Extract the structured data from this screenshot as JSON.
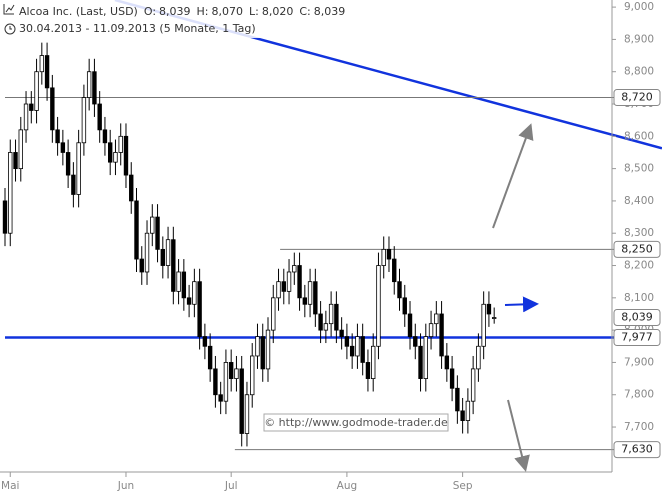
{
  "chart_data": {
    "type": "candlestick",
    "title": "Alcoa Inc. (Last, USD)",
    "ohlc_header": [
      {
        "name": "O:",
        "value": 8.039,
        "label": "8,039"
      },
      {
        "name": "H:",
        "value": 8.07,
        "label": "8,070"
      },
      {
        "name": "L:",
        "value": 8.02,
        "label": "8,020"
      },
      {
        "name": "C:",
        "value": 8.039,
        "label": "8,039"
      }
    ],
    "subtitle": "30.04.2013 - 11.09.2013 (5 Monate, 1 Tag)",
    "watermark": "© http://www.godmode-trader.de",
    "categories": [
      null,
      "Mai",
      null,
      null,
      null,
      null,
      null,
      null,
      null,
      null,
      null,
      null,
      null,
      null,
      null,
      null,
      null,
      null,
      null,
      null,
      null,
      null,
      null,
      "Jun",
      null,
      null,
      null,
      null,
      null,
      null,
      null,
      null,
      null,
      null,
      null,
      null,
      null,
      null,
      null,
      null,
      null,
      null,
      null,
      "Jul",
      null,
      null,
      null,
      null,
      null,
      null,
      null,
      null,
      null,
      null,
      null,
      null,
      null,
      null,
      null,
      null,
      null,
      null,
      null,
      null,
      null,
      "Aug",
      null,
      null,
      null,
      null,
      null,
      null,
      null,
      null,
      null,
      null,
      null,
      null,
      null,
      null,
      null,
      null,
      null,
      null,
      null,
      null,
      null,
      "Sep",
      null,
      null,
      null,
      null,
      null,
      null
    ],
    "series": {
      "open": [
        8.4,
        8.3,
        8.55,
        8.5,
        8.62,
        8.7,
        8.68,
        8.8,
        8.85,
        8.75,
        8.62,
        8.58,
        8.55,
        8.48,
        8.42,
        8.58,
        8.72,
        8.8,
        8.7,
        8.62,
        8.58,
        8.52,
        8.55,
        8.6,
        8.48,
        8.4,
        8.22,
        8.18,
        8.3,
        8.35,
        8.25,
        8.2,
        8.28,
        8.12,
        8.18,
        8.1,
        8.08,
        8.15,
        7.98,
        7.95,
        7.88,
        7.8,
        7.78,
        7.9,
        7.85,
        7.88,
        7.68,
        7.8,
        7.92,
        7.98,
        7.88,
        8.0,
        8.1,
        8.15,
        8.12,
        8.18,
        8.2,
        8.1,
        8.08,
        8.15,
        8.05,
        8.0,
        8.02,
        8.08,
        8.0,
        7.98,
        7.95,
        7.92,
        7.98,
        7.9,
        7.85,
        7.95,
        8.2,
        8.25,
        8.22,
        8.15,
        8.1,
        8.05,
        7.98,
        7.95,
        7.85,
        7.98,
        8.02,
        8.05,
        7.92,
        7.88,
        7.82,
        7.75,
        7.72,
        7.78,
        7.88,
        7.95,
        8.08,
        8.039
      ],
      "high": [
        8.44,
        8.59,
        8.59,
        8.66,
        8.74,
        8.74,
        8.84,
        8.89,
        8.89,
        8.79,
        8.66,
        8.62,
        8.59,
        8.52,
        8.62,
        8.76,
        8.84,
        8.84,
        8.74,
        8.66,
        8.62,
        8.59,
        8.64,
        8.64,
        8.52,
        8.44,
        8.26,
        8.34,
        8.39,
        8.39,
        8.29,
        8.32,
        8.32,
        8.22,
        8.22,
        8.14,
        8.19,
        8.19,
        8.02,
        7.99,
        7.92,
        7.84,
        7.94,
        7.94,
        7.92,
        7.92,
        7.84,
        7.96,
        8.02,
        8.02,
        8.04,
        8.14,
        8.19,
        8.19,
        8.22,
        8.24,
        8.24,
        8.14,
        8.19,
        8.19,
        8.09,
        8.06,
        8.12,
        8.12,
        8.04,
        8.02,
        7.99,
        8.02,
        8.02,
        7.94,
        7.99,
        8.24,
        8.29,
        8.29,
        8.26,
        8.19,
        8.14,
        8.09,
        8.02,
        7.99,
        8.02,
        8.06,
        8.09,
        8.09,
        7.96,
        7.92,
        7.86,
        7.79,
        7.82,
        7.92,
        7.99,
        8.12,
        8.12,
        8.07
      ],
      "low": [
        8.26,
        8.26,
        8.46,
        8.46,
        8.58,
        8.64,
        8.64,
        8.76,
        8.71,
        8.58,
        8.54,
        8.51,
        8.44,
        8.38,
        8.38,
        8.54,
        8.68,
        8.66,
        8.58,
        8.54,
        8.48,
        8.48,
        8.51,
        8.44,
        8.36,
        8.18,
        8.14,
        8.14,
        8.26,
        8.21,
        8.16,
        8.16,
        8.08,
        8.08,
        8.06,
        8.04,
        8.04,
        7.94,
        7.91,
        7.84,
        7.76,
        7.74,
        7.74,
        7.81,
        7.81,
        7.64,
        7.64,
        7.76,
        7.88,
        7.84,
        7.84,
        7.96,
        8.06,
        8.08,
        8.08,
        8.14,
        8.06,
        8.04,
        8.04,
        8.01,
        7.96,
        7.96,
        7.98,
        7.96,
        7.94,
        7.91,
        7.88,
        7.88,
        7.86,
        7.81,
        7.81,
        7.91,
        8.16,
        8.18,
        8.11,
        8.06,
        8.01,
        7.94,
        7.91,
        7.81,
        7.81,
        7.94,
        7.98,
        7.88,
        7.84,
        7.78,
        7.71,
        7.68,
        7.68,
        7.74,
        7.84,
        7.91,
        8.01,
        8.02
      ],
      "close": [
        8.3,
        8.55,
        8.5,
        8.62,
        8.7,
        8.68,
        8.8,
        8.85,
        8.75,
        8.62,
        8.58,
        8.55,
        8.48,
        8.42,
        8.58,
        8.72,
        8.8,
        8.7,
        8.62,
        8.58,
        8.52,
        8.55,
        8.6,
        8.48,
        8.4,
        8.22,
        8.18,
        8.3,
        8.35,
        8.25,
        8.2,
        8.28,
        8.12,
        8.18,
        8.1,
        8.08,
        8.15,
        7.98,
        7.95,
        7.88,
        7.8,
        7.78,
        7.9,
        7.85,
        7.88,
        7.68,
        7.8,
        7.92,
        7.98,
        7.88,
        8.0,
        8.1,
        8.15,
        8.12,
        8.18,
        8.2,
        8.1,
        8.08,
        8.15,
        8.05,
        8.0,
        8.02,
        8.08,
        8.0,
        7.98,
        7.95,
        7.92,
        7.98,
        7.9,
        7.85,
        7.95,
        8.2,
        8.25,
        8.22,
        8.15,
        8.1,
        8.05,
        7.98,
        7.95,
        7.85,
        7.98,
        8.02,
        8.05,
        7.92,
        7.88,
        7.82,
        7.75,
        7.72,
        7.78,
        7.88,
        7.95,
        8.08,
        8.05,
        8.039
      ]
    },
    "ylim": [
      7.567,
      9.022
    ],
    "yticks": [
      {
        "value": 7.7,
        "label": "7,700"
      },
      {
        "value": 7.8,
        "label": "7,800"
      },
      {
        "value": 7.9,
        "label": "7,900"
      },
      {
        "value": 8.0,
        "label": "8,000"
      },
      {
        "value": 8.1,
        "label": "8,100"
      },
      {
        "value": 8.2,
        "label": "8,200"
      },
      {
        "value": 8.3,
        "label": "8,300"
      },
      {
        "value": 8.4,
        "label": "8,400"
      },
      {
        "value": 8.5,
        "label": "8,500"
      },
      {
        "value": 8.6,
        "label": "8,600"
      },
      {
        "value": 8.7,
        "label": "8,700"
      },
      {
        "value": 8.8,
        "label": "8,800"
      },
      {
        "value": 8.9,
        "label": "8,900"
      },
      {
        "value": 9.0,
        "label": "9,000"
      }
    ],
    "levels": [
      {
        "value": 8.72,
        "label": "8,720",
        "from": 0,
        "color": "#777777"
      },
      {
        "value": 8.25,
        "label": "8,250",
        "from": 52.3,
        "color": "#777777"
      },
      {
        "value": 7.977,
        "label": "7,977",
        "from": 0,
        "color": "#1133dd"
      },
      {
        "value": 7.63,
        "label": "7,630",
        "from": 43.7,
        "color": "#777777"
      }
    ],
    "price_label": {
      "value": 8.039,
      "label": "8,039"
    },
    "trendline": {
      "x": [
        20.9,
        124.9
      ],
      "y": [
        9.022,
        8.563
      ],
      "color": "#1133dd"
    }
  }
}
